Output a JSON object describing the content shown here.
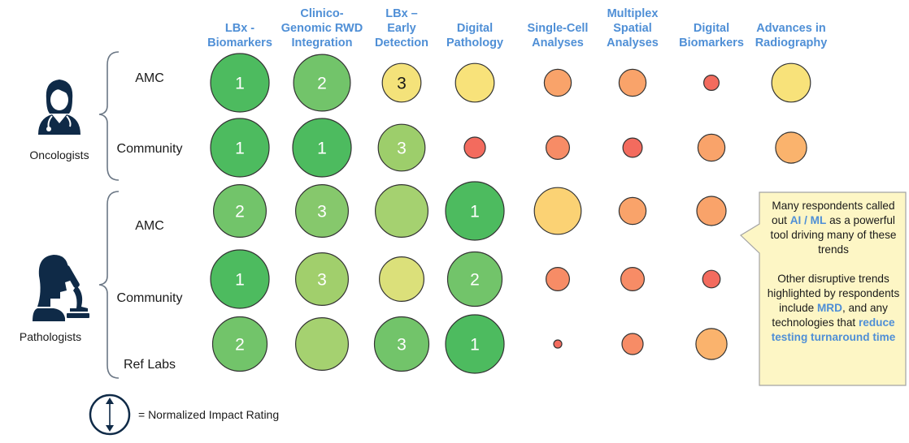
{
  "chart_data": {
    "type": "bubble-matrix",
    "columns": [
      {
        "key": "lbx_biomarkers",
        "label_lines": [
          "LBx -",
          "Biomarkers"
        ]
      },
      {
        "key": "clinico_genomic",
        "label_lines": [
          "Clinico-",
          "Genomic RWD",
          "Integration"
        ]
      },
      {
        "key": "lbx_early",
        "label_lines": [
          "LBx –",
          "Early",
          "Detection"
        ]
      },
      {
        "key": "digital_pathology",
        "label_lines": [
          "Digital",
          "Pathology"
        ]
      },
      {
        "key": "single_cell",
        "label_lines": [
          "Single-Cell",
          "Analyses"
        ]
      },
      {
        "key": "multiplex",
        "label_lines": [
          "Multiplex",
          "Spatial",
          "Analyses"
        ]
      },
      {
        "key": "digital_biomarkers",
        "label_lines": [
          "Digital",
          "Biomarkers"
        ]
      },
      {
        "key": "radiography",
        "label_lines": [
          "Advances in",
          "Radiography"
        ]
      }
    ],
    "groups": [
      {
        "name": "Oncologists",
        "rows": [
          {
            "label": "AMC",
            "cells": [
              {
                "impact": 1.0,
                "rank": "1",
                "color": "#4dbb5f"
              },
              {
                "impact": 0.97,
                "rank": "2",
                "color": "#72c46a"
              },
              {
                "impact": 0.66,
                "rank": "3",
                "color": "#f4e27a"
              },
              {
                "impact": 0.66,
                "rank": "",
                "color": "#f8e27a"
              },
              {
                "impact": 0.46,
                "rank": "",
                "color": "#f9a36a"
              },
              {
                "impact": 0.46,
                "rank": "",
                "color": "#f9a36a"
              },
              {
                "impact": 0.26,
                "rank": "",
                "color": "#f36b5e"
              },
              {
                "impact": 0.66,
                "rank": "",
                "color": "#f8e27a"
              }
            ]
          },
          {
            "label": "Community",
            "cells": [
              {
                "impact": 1.0,
                "rank": "1",
                "color": "#4dbb5f"
              },
              {
                "impact": 1.0,
                "rank": "1",
                "color": "#4dbb5f"
              },
              {
                "impact": 0.8,
                "rank": "3",
                "color": "#9dce6b"
              },
              {
                "impact": 0.36,
                "rank": "",
                "color": "#f36b5e"
              },
              {
                "impact": 0.4,
                "rank": "",
                "color": "#f78c66"
              },
              {
                "impact": 0.33,
                "rank": "",
                "color": "#f36b5e"
              },
              {
                "impact": 0.46,
                "rank": "",
                "color": "#f9a36a"
              },
              {
                "impact": 0.53,
                "rank": "",
                "color": "#fab36d"
              }
            ]
          }
        ]
      },
      {
        "name": "Pathologists",
        "rows": [
          {
            "label": "AMC",
            "cells": [
              {
                "impact": 0.9,
                "rank": "2",
                "color": "#72c46a"
              },
              {
                "impact": 0.9,
                "rank": "3",
                "color": "#86c86c"
              },
              {
                "impact": 0.9,
                "rank": "",
                "color": "#a5d170"
              },
              {
                "impact": 1.0,
                "rank": "1",
                "color": "#4dbb5f"
              },
              {
                "impact": 0.8,
                "rank": "",
                "color": "#fbd274"
              },
              {
                "impact": 0.46,
                "rank": "",
                "color": "#f9a36a"
              },
              {
                "impact": 0.5,
                "rank": "",
                "color": "#f9a36a"
              },
              {
                "impact": 0,
                "rank": "",
                "color": "#ffffff"
              }
            ]
          },
          {
            "label": "Community",
            "cells": [
              {
                "impact": 1.0,
                "rank": "1",
                "color": "#4dbb5f"
              },
              {
                "impact": 0.9,
                "rank": "3",
                "color": "#a1cf6c"
              },
              {
                "impact": 0.76,
                "rank": "",
                "color": "#dbe07a"
              },
              {
                "impact": 0.93,
                "rank": "2",
                "color": "#72c46a"
              },
              {
                "impact": 0.4,
                "rank": "",
                "color": "#f78c66"
              },
              {
                "impact": 0.4,
                "rank": "",
                "color": "#f78c66"
              },
              {
                "impact": 0.3,
                "rank": "",
                "color": "#f36b5e"
              },
              {
                "impact": 0,
                "rank": "",
                "color": "#ffffff"
              }
            ]
          },
          {
            "label": "Ref Labs",
            "cells": [
              {
                "impact": 0.93,
                "rank": "2",
                "color": "#72c46a"
              },
              {
                "impact": 0.9,
                "rank": "",
                "color": "#a5d170"
              },
              {
                "impact": 0.93,
                "rank": "3",
                "color": "#72c46a"
              },
              {
                "impact": 1.0,
                "rank": "1",
                "color": "#4dbb5f"
              },
              {
                "impact": 0.14,
                "rank": "",
                "color": "#f36b5e"
              },
              {
                "impact": 0.36,
                "rank": "",
                "color": "#f78c66"
              },
              {
                "impact": 0.53,
                "rank": "",
                "color": "#fab36d"
              },
              {
                "impact": 0,
                "rank": "",
                "color": "#ffffff"
              }
            ]
          }
        ]
      }
    ],
    "legend": {
      "label": "= Normalized Impact Rating"
    }
  },
  "callout": {
    "part1_before": "Many respondents called out ",
    "part1_highlight": "AI / ML",
    "part1_after": " as a powerful tool driving many of these trends",
    "part2_before": "Other disruptive trends highlighted by respondents include ",
    "part2_highlight1": "MRD",
    "part2_middle": ", and any technologies that ",
    "part2_highlight2": "reduce testing turnaround time"
  },
  "colors": {
    "heading": "#4f8fd6",
    "icon": "#0f2a47",
    "callout_fill": "#fdf6c5",
    "callout_border": "#a3a3a3"
  }
}
